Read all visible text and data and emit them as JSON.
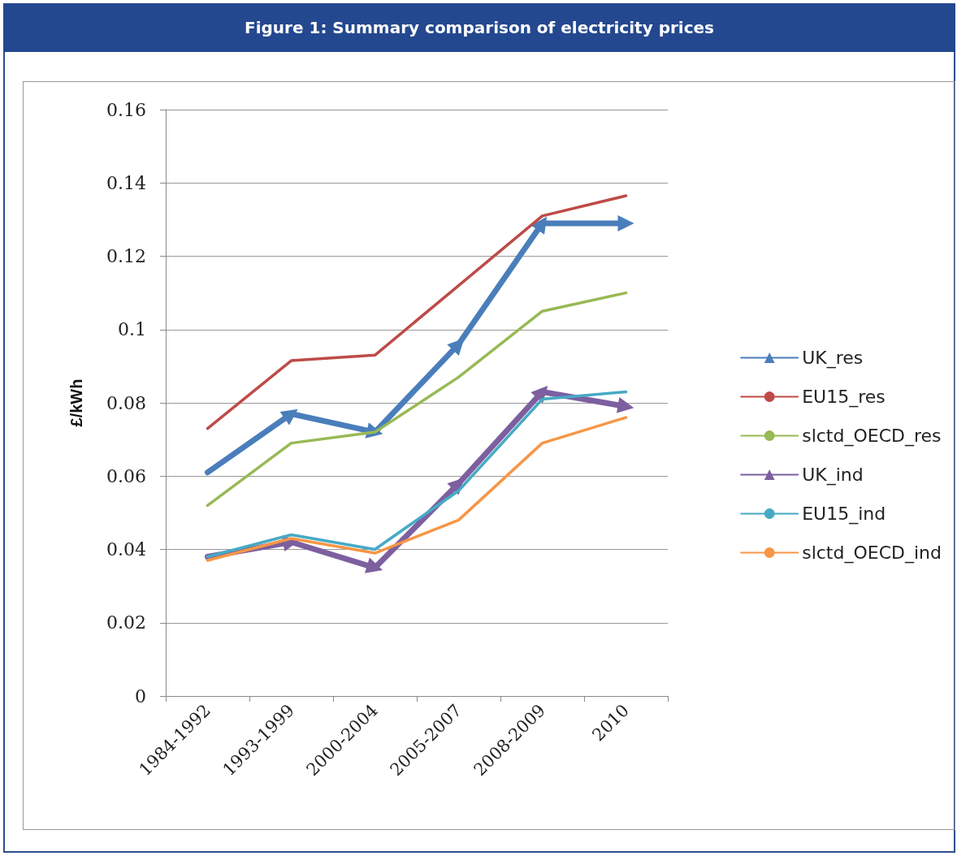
{
  "chart_data": {
    "type": "line",
    "title": "Figure 1:  Summary comparison of electricity prices",
    "ylabel": "£/kWh",
    "categories": [
      "1984-1992",
      "1993-1999",
      "2000-2004",
      "2005-2007",
      "2008-2009",
      "2010"
    ],
    "ylim": [
      0,
      0.16
    ],
    "yticks": [
      0,
      0.02,
      0.04,
      0.06,
      0.08,
      0.1,
      0.12,
      0.14,
      0.16
    ],
    "grid": "y",
    "legend": "right",
    "marker": "none",
    "line_style": "solid",
    "series": [
      {
        "name": "UK_res",
        "color": "#4a7ebb",
        "marker": "triangle",
        "values": [
          0.061,
          0.077,
          0.072,
          0.096,
          0.129,
          0.129
        ]
      },
      {
        "name": "EU15_res",
        "color": "#be4b48",
        "values": [
          0.073,
          0.0915,
          0.093,
          0.112,
          0.131,
          0.1365
        ]
      },
      {
        "name": "slctd_OECD_res",
        "color": "#98b954",
        "values": [
          0.052,
          0.069,
          0.072,
          0.087,
          0.105,
          0.11
        ]
      },
      {
        "name": "UK_ind",
        "color": "#7d5fa0",
        "marker": "triangle",
        "values": [
          0.038,
          0.042,
          0.035,
          0.058,
          0.083,
          0.079
        ]
      },
      {
        "name": "EU15_ind",
        "color": "#46aac5",
        "values": [
          0.038,
          0.044,
          0.04,
          0.056,
          0.081,
          0.083
        ]
      },
      {
        "name": "slctd_OECD_ind",
        "color": "#f79646",
        "values": [
          0.037,
          0.043,
          0.039,
          0.048,
          0.069,
          0.076
        ]
      }
    ]
  }
}
